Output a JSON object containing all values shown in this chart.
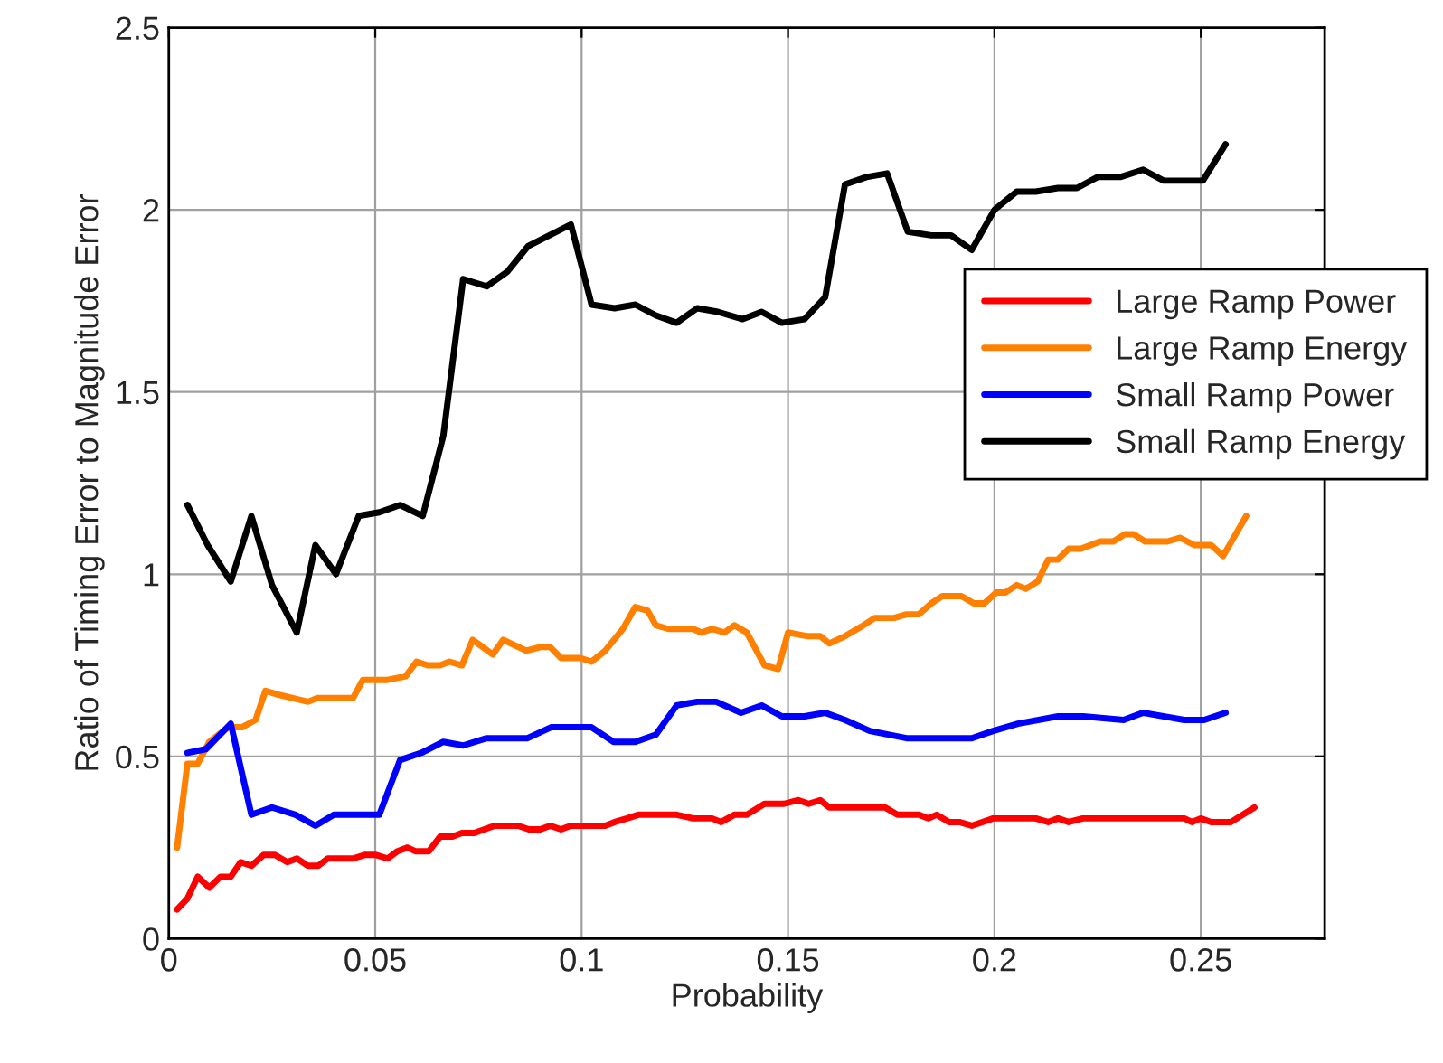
{
  "chart_data": {
    "type": "line",
    "xlabel": "Probability",
    "ylabel": "Ratio of Timing Error to Magnitude Error",
    "xlim": [
      0,
      0.28
    ],
    "xticks": [
      0,
      0.05,
      0.1,
      0.15,
      0.2,
      0.25
    ],
    "ylim": [
      0,
      2.5
    ],
    "yticks": [
      0,
      0.5,
      1,
      1.5,
      2,
      2.5
    ],
    "grid": true,
    "legend": "right",
    "marker": "none",
    "line_style": "solid",
    "series": [
      {
        "name": "Large Ramp Power",
        "color": "#ff0000",
        "x": [
          0.002,
          0.0045,
          0.007,
          0.0098,
          0.0125,
          0.015,
          0.0174,
          0.02,
          0.023,
          0.0257,
          0.0287,
          0.031,
          0.0337,
          0.0362,
          0.0385,
          0.0415,
          0.0446,
          0.0476,
          0.05,
          0.053,
          0.0554,
          0.0578,
          0.0597,
          0.063,
          0.0657,
          0.0687,
          0.071,
          0.074,
          0.0789,
          0.0846,
          0.0872,
          0.09,
          0.0924,
          0.095,
          0.0974,
          0.1057,
          0.108,
          0.111,
          0.1137,
          0.123,
          0.127,
          0.1316,
          0.1338,
          0.137,
          0.14,
          0.1443,
          0.149,
          0.1525,
          0.155,
          0.1578,
          0.16,
          0.1735,
          0.1765,
          0.1817,
          0.184,
          0.186,
          0.189,
          0.1915,
          0.1945,
          0.1997,
          0.21,
          0.213,
          0.2154,
          0.218,
          0.2214,
          0.246,
          0.2478,
          0.25,
          0.2525,
          0.2573,
          0.263
        ],
        "values": [
          0.08,
          0.11,
          0.17,
          0.14,
          0.17,
          0.17,
          0.21,
          0.2,
          0.23,
          0.23,
          0.21,
          0.22,
          0.2,
          0.2,
          0.22,
          0.22,
          0.22,
          0.23,
          0.23,
          0.22,
          0.24,
          0.25,
          0.24,
          0.24,
          0.28,
          0.28,
          0.29,
          0.29,
          0.31,
          0.31,
          0.3,
          0.3,
          0.31,
          0.3,
          0.31,
          0.31,
          0.32,
          0.33,
          0.34,
          0.34,
          0.33,
          0.33,
          0.32,
          0.34,
          0.34,
          0.37,
          0.37,
          0.38,
          0.37,
          0.38,
          0.36,
          0.36,
          0.34,
          0.34,
          0.33,
          0.34,
          0.32,
          0.32,
          0.31,
          0.33,
          0.33,
          0.32,
          0.33,
          0.32,
          0.33,
          0.33,
          0.32,
          0.33,
          0.32,
          0.32,
          0.36
        ]
      },
      {
        "name": "Large Ramp Energy",
        "color": "#ff8000",
        "x": [
          0.002,
          0.0045,
          0.007,
          0.0098,
          0.0144,
          0.0177,
          0.021,
          0.0234,
          0.0264,
          0.0337,
          0.036,
          0.0446,
          0.047,
          0.053,
          0.0574,
          0.06,
          0.0627,
          0.0657,
          0.068,
          0.071,
          0.0736,
          0.0785,
          0.081,
          0.0866,
          0.09,
          0.0924,
          0.095,
          0.0997,
          0.1024,
          0.1057,
          0.11,
          0.113,
          0.116,
          0.118,
          0.121,
          0.127,
          0.129,
          0.1316,
          0.1346,
          0.137,
          0.14,
          0.1443,
          0.1476,
          0.15,
          0.1548,
          0.1578,
          0.16,
          0.1638,
          0.1683,
          0.171,
          0.1757,
          0.1787,
          0.1817,
          0.1847,
          0.1874,
          0.192,
          0.195,
          0.1975,
          0.2005,
          0.2027,
          0.2054,
          0.2076,
          0.2105,
          0.213,
          0.2153,
          0.218,
          0.221,
          0.2256,
          0.2288,
          0.2316,
          0.2337,
          0.2365,
          0.2419,
          0.245,
          0.2484,
          0.2525,
          0.2554,
          0.261
        ],
        "values": [
          0.25,
          0.48,
          0.48,
          0.54,
          0.58,
          0.58,
          0.6,
          0.68,
          0.67,
          0.65,
          0.66,
          0.66,
          0.71,
          0.71,
          0.72,
          0.76,
          0.75,
          0.75,
          0.76,
          0.75,
          0.82,
          0.78,
          0.82,
          0.79,
          0.8,
          0.8,
          0.77,
          0.77,
          0.76,
          0.79,
          0.85,
          0.91,
          0.9,
          0.86,
          0.85,
          0.85,
          0.84,
          0.85,
          0.84,
          0.86,
          0.84,
          0.75,
          0.74,
          0.84,
          0.83,
          0.83,
          0.81,
          0.83,
          0.86,
          0.88,
          0.88,
          0.89,
          0.89,
          0.92,
          0.94,
          0.94,
          0.92,
          0.92,
          0.95,
          0.95,
          0.97,
          0.96,
          0.98,
          1.04,
          1.04,
          1.07,
          1.07,
          1.09,
          1.09,
          1.11,
          1.11,
          1.09,
          1.09,
          1.1,
          1.08,
          1.08,
          1.05,
          1.16
        ]
      },
      {
        "name": "Small Ramp Power",
        "color": "#0000ff",
        "x": [
          0.0045,
          0.009,
          0.015,
          0.02,
          0.025,
          0.0307,
          0.0355,
          0.04,
          0.051,
          0.056,
          0.0612,
          0.0665,
          0.0713,
          0.077,
          0.0869,
          0.0926,
          0.1024,
          0.1077,
          0.113,
          0.118,
          0.123,
          0.128,
          0.1326,
          0.1386,
          0.1436,
          0.1485,
          0.154,
          0.159,
          0.1638,
          0.1698,
          0.1787,
          0.1945,
          0.1997,
          0.2057,
          0.2154,
          0.2215,
          0.2313,
          0.236,
          0.246,
          0.2508,
          0.256
        ],
        "values": [
          0.51,
          0.52,
          0.59,
          0.34,
          0.36,
          0.34,
          0.31,
          0.34,
          0.34,
          0.49,
          0.51,
          0.54,
          0.53,
          0.55,
          0.55,
          0.58,
          0.58,
          0.54,
          0.54,
          0.56,
          0.64,
          0.65,
          0.65,
          0.62,
          0.64,
          0.61,
          0.61,
          0.62,
          0.6,
          0.57,
          0.55,
          0.55,
          0.57,
          0.59,
          0.61,
          0.61,
          0.6,
          0.62,
          0.6,
          0.6,
          0.62
        ]
      },
      {
        "name": "Small Ramp Energy",
        "color": "#000000",
        "x": [
          0.0045,
          0.0094,
          0.015,
          0.02,
          0.025,
          0.031,
          0.0355,
          0.0405,
          0.046,
          0.051,
          0.056,
          0.0615,
          0.0665,
          0.0713,
          0.077,
          0.082,
          0.087,
          0.0974,
          0.1024,
          0.108,
          0.113,
          0.118,
          0.123,
          0.128,
          0.133,
          0.139,
          0.1436,
          0.1485,
          0.154,
          0.159,
          0.1638,
          0.169,
          0.174,
          0.179,
          0.1847,
          0.1895,
          0.1945,
          0.2,
          0.2054,
          0.21,
          0.2154,
          0.22,
          0.225,
          0.2305,
          0.236,
          0.241,
          0.2505,
          0.256
        ],
        "values": [
          1.19,
          1.08,
          0.98,
          1.16,
          0.97,
          0.84,
          1.08,
          1.0,
          1.16,
          1.17,
          1.19,
          1.16,
          1.38,
          1.81,
          1.79,
          1.83,
          1.9,
          1.96,
          1.74,
          1.73,
          1.74,
          1.71,
          1.69,
          1.73,
          1.72,
          1.7,
          1.72,
          1.69,
          1.7,
          1.76,
          2.07,
          2.09,
          2.1,
          1.94,
          1.93,
          1.93,
          1.89,
          2.0,
          2.05,
          2.05,
          2.06,
          2.06,
          2.09,
          2.09,
          2.11,
          2.08,
          2.08,
          2.18
        ]
      }
    ]
  }
}
